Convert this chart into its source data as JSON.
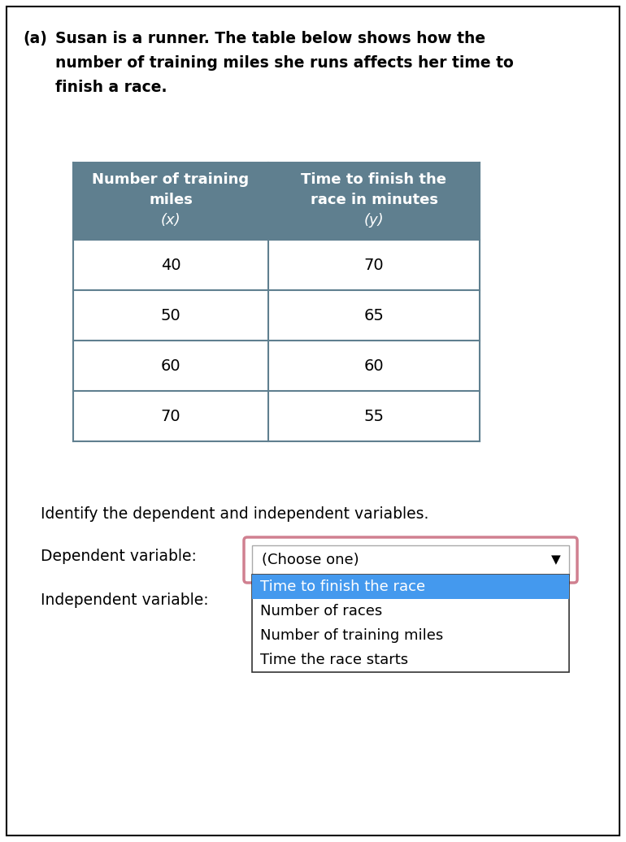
{
  "background_color": "#ffffff",
  "outer_border_color": "#000000",
  "label_a": "(a)",
  "intro_text_lines": [
    "Susan is a runner. The table below shows how the",
    "number of training miles she runs affects her time to",
    "finish a race."
  ],
  "table_header_bg": "#5f7f8f",
  "table_header_text_color": "#ffffff",
  "table_row_bg": "#ffffff",
  "table_border_color": "#5f7f8f",
  "col1_header_line1": "Number of training",
  "col1_header_line2": "miles",
  "col1_header_line3": "(x)",
  "col2_header_line1": "Time to finish the",
  "col2_header_line2": "race in minutes",
  "col2_header_line3": "(y)",
  "table_data": [
    [
      "40",
      "70"
    ],
    [
      "50",
      "65"
    ],
    [
      "60",
      "60"
    ],
    [
      "70",
      "55"
    ]
  ],
  "identify_text": "Identify the dependent and independent variables.",
  "dependent_label": "Dependent variable:",
  "independent_label": "Independent variable:",
  "dropdown_text": "(Choose one)",
  "dropdown_border_color": "#d08090",
  "dropdown_arrow": "▼",
  "dropdown_bg": "#ffffff",
  "dropdown_items": [
    "Time to finish the race",
    "Number of races",
    "Number of training miles",
    "Time the race starts"
  ],
  "dropdown_selected_bg": "#4499ee",
  "dropdown_selected_text_color": "#ffffff",
  "dropdown_item_text_color": "#000000",
  "dropdown_list_border_color": "#333333",
  "font_family": "DejaVu Sans",
  "font_size_body": 13.5,
  "font_size_table_header": 13,
  "font_size_table_data": 14,
  "font_size_dropdown": 13
}
